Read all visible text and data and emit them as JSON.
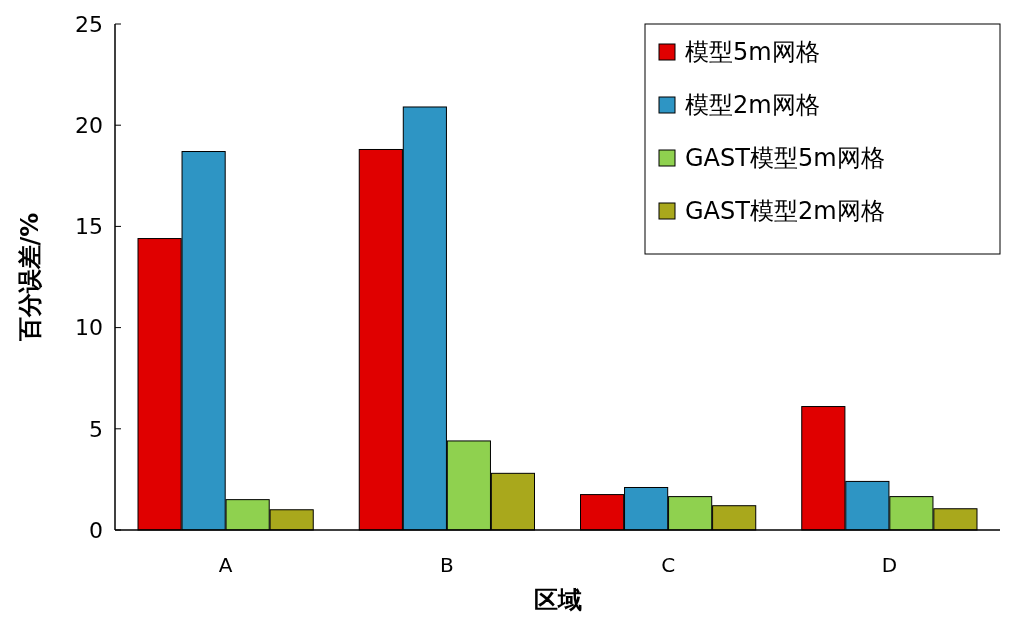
{
  "chart_data": {
    "type": "bar",
    "xlabel": "区域",
    "ylabel": "百分误差/%",
    "categories": [
      "A",
      "B",
      "C",
      "D"
    ],
    "series": [
      {
        "name": "模型5m网格",
        "color": "#e00000",
        "values": [
          14.4,
          18.8,
          1.75,
          6.1
        ]
      },
      {
        "name": "模型2m网格",
        "color": "#2e95c4",
        "values": [
          18.7,
          20.9,
          2.1,
          2.4
        ]
      },
      {
        "name": "GAST模型5m网格",
        "color": "#8fd14f",
        "values": [
          1.5,
          4.4,
          1.65,
          1.65
        ]
      },
      {
        "name": "GAST模型2m网格",
        "color": "#a9a81c",
        "values": [
          1.0,
          2.8,
          1.2,
          1.05
        ]
      }
    ],
    "ylim": [
      0,
      25
    ],
    "yticks": [
      0,
      5,
      10,
      15,
      20,
      25
    ],
    "grid": false,
    "legend": "top right"
  }
}
